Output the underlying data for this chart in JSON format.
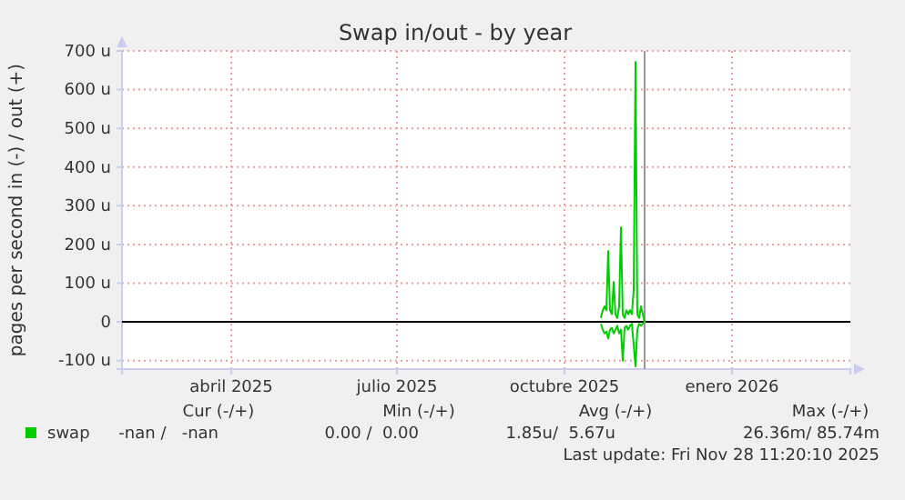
{
  "chart_data": {
    "type": "line",
    "title": "Swap in/out - by year",
    "ylabel": "pages per second in (-) / out (+)",
    "x": [
      "2025-11-04",
      "2025-11-05",
      "2025-11-06",
      "2025-11-07",
      "2025-11-08",
      "2025-11-09",
      "2025-11-10",
      "2025-11-11",
      "2025-11-12",
      "2025-11-13",
      "2025-11-14",
      "2025-11-15",
      "2025-11-16",
      "2025-11-17",
      "2025-11-18",
      "2025-11-19",
      "2025-11-20",
      "2025-11-21",
      "2025-11-22",
      "2025-11-23",
      "2025-11-24",
      "2025-11-25",
      "2025-11-26",
      "2025-11-27",
      "2025-11-28"
    ],
    "series": [
      {
        "name": "swap",
        "color": "#00cc00",
        "values": [
          10,
          30,
          40,
          30,
          183,
          30,
          20,
          103,
          20,
          10,
          40,
          244,
          20,
          10,
          30,
          20,
          30,
          20,
          80,
          671,
          20,
          10,
          40,
          20,
          0
        ]
      },
      {
        "color": "#00cc00",
        "values": [
          -5,
          -20,
          -30,
          -25,
          -43,
          -20,
          -15,
          -30,
          -20,
          -10,
          -30,
          -20,
          -100,
          -15,
          -10,
          -20,
          -10,
          -5,
          -60,
          -115,
          -20,
          -5,
          -10,
          -5,
          0
        ]
      }
    ],
    "xlim": [
      "2025-02-14",
      "2026-03-21"
    ],
    "xticks": [
      {
        "value": "2025-04-15",
        "label": "abril 2025"
      },
      {
        "value": "2025-07-15",
        "label": "julio 2025"
      },
      {
        "value": "2025-10-15",
        "label": "octubre 2025"
      },
      {
        "value": "2026-01-15",
        "label": "enero 2026"
      }
    ],
    "ylim": [
      -122,
      700
    ],
    "yticks": [
      {
        "value": -100,
        "label": "-100 u"
      },
      0,
      {
        "value": 100,
        "label": "100 u"
      },
      {
        "value": 200,
        "label": "200 u"
      },
      {
        "value": 300,
        "label": "300 u"
      },
      {
        "value": 400,
        "label": "400 u"
      },
      {
        "value": 500,
        "label": "500 u"
      },
      {
        "value": 600,
        "label": "600 u"
      },
      {
        "value": 700,
        "label": "700 u"
      }
    ],
    "ref_lines": [
      {
        "axis": "y",
        "value": 0,
        "color": "#000000"
      },
      {
        "axis": "x",
        "value": "2025-11-28",
        "color": "#999999"
      }
    ],
    "grid": true,
    "legend": "bottom",
    "marker": "none",
    "line_style": "solid",
    "annotations": [
      "Cur (-/+)",
      "Min (-/+)",
      "Avg (-/+)",
      "Max (-/+)",
      "-nan /   -nan",
      "0.00 /  0.00",
      "1.85u/  5.67u",
      "26.36m/ 85.74m",
      "Last update: Fri Nov 28 11:20:10 2025"
    ]
  }
}
